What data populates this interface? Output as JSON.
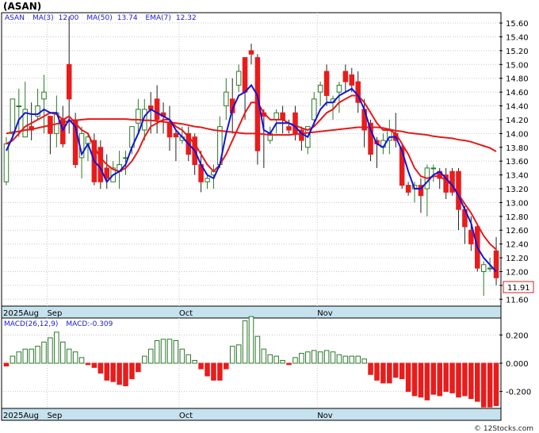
{
  "chart_data": {
    "type": "candlestick",
    "title": "(ASAN)",
    "copyright": "© 12Stocks.com",
    "last_price_label": "11.91",
    "legend": {
      "symbol": "ASAN",
      "ma3_label": "MA(3)",
      "ma3_value": "12.00",
      "ma50_label": "MA(50)",
      "ma50_value": "13.74",
      "ema7_label": "EMA(7)",
      "ema7_value": "12.32"
    },
    "macd_legend": {
      "label": "MACD(26,12,9)",
      "value_label": "MACD:",
      "value": "-0.309"
    },
    "price_axis": {
      "min": 11.5,
      "max": 15.75,
      "ticks": [
        "11.60",
        "11.80",
        "12.00",
        "12.20",
        "12.40",
        "12.60",
        "12.80",
        "13.00",
        "13.20",
        "13.40",
        "13.60",
        "13.80",
        "14.00",
        "14.20",
        "14.40",
        "14.60",
        "14.80",
        "15.00",
        "15.20",
        "15.40",
        "15.60"
      ]
    },
    "macd_axis": {
      "min": -0.32,
      "max": 0.32,
      "ticks": [
        "0.200",
        "0.000",
        "-0.200"
      ]
    },
    "date_labels": [
      {
        "text": "2025Aug",
        "index": 0
      },
      {
        "text": "Sep",
        "index": 7
      },
      {
        "text": "Oct",
        "index": 28
      },
      {
        "text": "Nov",
        "index": 50
      }
    ],
    "colors": {
      "up": "#ffffff",
      "down": "#e81c1c",
      "up_border": "#2a7a2a",
      "ma3": "#1414d8",
      "ma50": "#e41a1a",
      "ema7": "#e41a1a",
      "macd_pos": "#2a7a2a",
      "macd_neg": "#e81c1c"
    },
    "series": [
      {
        "name": "ASAN",
        "ohlc": [
          [
            13.3,
            13.85,
            13.25,
            13.95
          ],
          [
            14.0,
            14.5,
            13.95,
            14.5
          ],
          [
            14.4,
            14.4,
            13.95,
            14.65
          ],
          [
            13.95,
            14.35,
            13.95,
            14.75
          ],
          [
            14.1,
            14.05,
            13.9,
            14.45
          ],
          [
            14.25,
            14.4,
            14.2,
            14.65
          ],
          [
            14.5,
            14.6,
            14.0,
            14.85
          ],
          [
            14.25,
            14.0,
            13.7,
            14.25
          ],
          [
            14.0,
            14.3,
            13.8,
            14.55
          ],
          [
            14.2,
            13.85,
            13.8,
            14.4
          ],
          [
            15.0,
            14.5,
            14.0,
            15.7
          ],
          [
            14.2,
            13.55,
            13.5,
            14.3
          ],
          [
            13.65,
            14.0,
            13.35,
            14.1
          ],
          [
            13.85,
            13.95,
            13.6,
            14.0
          ],
          [
            13.9,
            13.3,
            13.25,
            14.0
          ],
          [
            13.8,
            13.3,
            13.2,
            13.9
          ],
          [
            13.5,
            13.35,
            13.2,
            13.7
          ],
          [
            13.3,
            13.5,
            13.3,
            13.6
          ],
          [
            13.45,
            13.55,
            13.2,
            13.75
          ],
          [
            13.65,
            13.65,
            13.4,
            13.75
          ],
          [
            13.8,
            14.1,
            13.7,
            14.1
          ],
          [
            14.15,
            14.35,
            14.0,
            14.5
          ],
          [
            14.05,
            14.35,
            13.9,
            14.5
          ],
          [
            14.4,
            14.35,
            14.0,
            14.6
          ],
          [
            14.5,
            14.2,
            14.0,
            14.7
          ],
          [
            14.3,
            14.25,
            14.0,
            14.45
          ],
          [
            14.15,
            13.95,
            13.75,
            14.4
          ],
          [
            14.0,
            13.95,
            13.6,
            14.05
          ],
          [
            13.9,
            13.95,
            13.85,
            14.1
          ],
          [
            14.0,
            13.7,
            13.6,
            14.1
          ],
          [
            13.95,
            13.55,
            13.4,
            14.0
          ],
          [
            13.55,
            13.3,
            13.15,
            13.75
          ],
          [
            13.3,
            13.35,
            13.2,
            13.4
          ],
          [
            13.4,
            13.45,
            13.2,
            13.55
          ],
          [
            13.55,
            14.1,
            13.5,
            14.25
          ],
          [
            14.4,
            14.6,
            14.2,
            14.8
          ],
          [
            14.5,
            14.3,
            14.0,
            14.8
          ],
          [
            14.7,
            14.9,
            14.6,
            15.0
          ],
          [
            15.1,
            14.6,
            14.2,
            15.1
          ],
          [
            15.2,
            15.15,
            15.0,
            15.3
          ],
          [
            15.1,
            13.75,
            13.55,
            15.15
          ],
          [
            14.3,
            14.25,
            13.5,
            14.35
          ],
          [
            13.9,
            14.0,
            13.85,
            14.1
          ],
          [
            14.2,
            14.3,
            14.0,
            14.35
          ],
          [
            14.3,
            14.2,
            14.0,
            14.4
          ],
          [
            14.1,
            14.05,
            14.0,
            14.2
          ],
          [
            14.3,
            14.0,
            13.9,
            14.4
          ],
          [
            14.05,
            13.9,
            13.75,
            14.1
          ],
          [
            13.8,
            14.1,
            13.7,
            14.1
          ],
          [
            14.2,
            14.5,
            14.1,
            14.6
          ],
          [
            14.6,
            14.7,
            14.4,
            14.75
          ],
          [
            14.9,
            14.55,
            14.4,
            15.0
          ],
          [
            14.45,
            14.5,
            14.2,
            14.55
          ],
          [
            14.6,
            14.7,
            14.3,
            14.75
          ],
          [
            14.9,
            14.75,
            14.6,
            15.0
          ],
          [
            14.85,
            14.7,
            14.6,
            14.95
          ],
          [
            14.75,
            14.45,
            14.3,
            14.9
          ],
          [
            14.35,
            14.05,
            13.8,
            14.5
          ],
          [
            14.15,
            13.7,
            13.6,
            14.2
          ],
          [
            13.9,
            13.85,
            13.5,
            13.95
          ],
          [
            13.8,
            13.9,
            13.7,
            14.0
          ],
          [
            13.9,
            14.05,
            13.7,
            14.2
          ],
          [
            14.0,
            13.9,
            13.8,
            14.3
          ],
          [
            13.8,
            13.25,
            13.2,
            13.85
          ],
          [
            13.25,
            13.15,
            13.1,
            13.3
          ],
          [
            13.2,
            13.25,
            13.0,
            13.3
          ],
          [
            13.25,
            13.1,
            12.85,
            13.35
          ],
          [
            13.2,
            13.5,
            12.8,
            13.55
          ],
          [
            13.5,
            13.5,
            13.3,
            13.55
          ],
          [
            13.45,
            13.35,
            13.2,
            13.5
          ],
          [
            13.4,
            13.15,
            13.05,
            13.5
          ],
          [
            13.45,
            13.15,
            13.1,
            13.5
          ],
          [
            13.45,
            12.9,
            12.6,
            13.5
          ],
          [
            12.9,
            12.65,
            12.4,
            12.95
          ],
          [
            12.6,
            12.4,
            12.3,
            12.8
          ],
          [
            12.65,
            12.05,
            12.0,
            12.7
          ],
          [
            12.0,
            12.1,
            11.65,
            12.15
          ],
          [
            12.05,
            12.05,
            12.0,
            12.2
          ],
          [
            12.3,
            11.91,
            11.8,
            12.5
          ]
        ]
      },
      {
        "name": "MA(3)",
        "values": [
          13.75,
          13.95,
          14.2,
          14.3,
          14.28,
          14.28,
          14.35,
          14.3,
          14.3,
          14.05,
          14.2,
          14.1,
          13.7,
          13.85,
          13.6,
          13.5,
          13.3,
          13.4,
          13.45,
          13.55,
          13.8,
          14.0,
          14.25,
          14.35,
          14.3,
          14.25,
          14.2,
          14.05,
          13.95,
          13.85,
          13.75,
          13.55,
          13.4,
          13.35,
          13.55,
          14.0,
          14.35,
          14.55,
          14.6,
          14.7,
          14.55,
          14.05,
          14.0,
          14.15,
          14.15,
          14.15,
          14.1,
          14.0,
          13.95,
          14.15,
          14.35,
          14.45,
          14.45,
          14.55,
          14.6,
          14.65,
          14.55,
          14.35,
          14.05,
          13.85,
          13.8,
          13.95,
          13.95,
          13.75,
          13.45,
          13.2,
          13.2,
          13.3,
          13.4,
          13.45,
          13.35,
          13.25,
          13.1,
          12.9,
          12.7,
          12.35,
          12.2,
          12.1,
          12.0
        ]
      },
      {
        "name": "MA(50)",
        "values": [
          14.0,
          14.02,
          14.03,
          14.05,
          14.06,
          14.08,
          14.1,
          14.12,
          14.14,
          14.16,
          14.18,
          14.19,
          14.2,
          14.21,
          14.21,
          14.21,
          14.21,
          14.21,
          14.21,
          14.21,
          14.2,
          14.2,
          14.19,
          14.19,
          14.18,
          14.17,
          14.16,
          14.15,
          14.14,
          14.12,
          14.1,
          14.09,
          14.07,
          14.05,
          14.04,
          14.03,
          14.02,
          14.01,
          14.0,
          14.0,
          14.0,
          13.99,
          13.98,
          13.98,
          13.98,
          13.98,
          13.99,
          14.0,
          14.01,
          14.02,
          14.03,
          14.04,
          14.05,
          14.06,
          14.07,
          14.08,
          14.09,
          14.09,
          14.09,
          14.09,
          14.08,
          14.06,
          14.04,
          14.03,
          14.01,
          14.0,
          13.99,
          13.98,
          13.96,
          13.95,
          13.94,
          13.93,
          13.91,
          13.9,
          13.88,
          13.85,
          13.82,
          13.79,
          13.74
        ]
      },
      {
        "name": "EMA(7)",
        "values": [
          13.85,
          13.9,
          14.0,
          14.1,
          14.15,
          14.2,
          14.25,
          14.3,
          14.28,
          14.2,
          14.25,
          14.15,
          14.05,
          14.0,
          13.8,
          13.65,
          13.55,
          13.48,
          13.45,
          13.5,
          13.6,
          13.75,
          13.95,
          14.1,
          14.15,
          14.2,
          14.2,
          14.1,
          14.05,
          13.95,
          13.85,
          13.7,
          13.55,
          13.45,
          13.55,
          13.7,
          13.9,
          14.1,
          14.3,
          14.45,
          14.45,
          14.3,
          14.2,
          14.2,
          14.2,
          14.15,
          14.12,
          14.08,
          14.05,
          14.1,
          14.2,
          14.3,
          14.35,
          14.45,
          14.5,
          14.55,
          14.55,
          14.45,
          14.3,
          14.15,
          14.05,
          14.05,
          14.0,
          13.85,
          13.7,
          13.5,
          13.38,
          13.35,
          13.38,
          13.38,
          13.32,
          13.25,
          13.12,
          12.98,
          12.85,
          12.68,
          12.52,
          12.4,
          12.32
        ]
      },
      {
        "name": "MACD(26,12,9)",
        "values": [
          -0.02,
          0.05,
          0.08,
          0.1,
          0.1,
          0.12,
          0.15,
          0.18,
          0.22,
          0.15,
          0.1,
          0.08,
          0.04,
          -0.01,
          -0.03,
          -0.07,
          -0.12,
          -0.13,
          -0.15,
          -0.16,
          -0.11,
          -0.06,
          0.05,
          0.1,
          0.16,
          0.17,
          0.17,
          0.16,
          0.1,
          0.06,
          0.02,
          -0.04,
          -0.09,
          -0.12,
          -0.12,
          -0.04,
          0.12,
          0.13,
          0.3,
          0.33,
          0.19,
          0.1,
          0.06,
          0.05,
          0.02,
          -0.01,
          0.04,
          0.07,
          0.08,
          0.09,
          0.08,
          0.09,
          0.08,
          0.06,
          0.05,
          0.05,
          0.05,
          0.03,
          -0.08,
          -0.12,
          -0.14,
          -0.14,
          -0.1,
          -0.11,
          -0.2,
          -0.23,
          -0.24,
          -0.26,
          -0.22,
          -0.23,
          -0.2,
          -0.21,
          -0.24,
          -0.23,
          -0.25,
          -0.27,
          -0.31,
          -0.31,
          -0.3
        ]
      }
    ]
  }
}
